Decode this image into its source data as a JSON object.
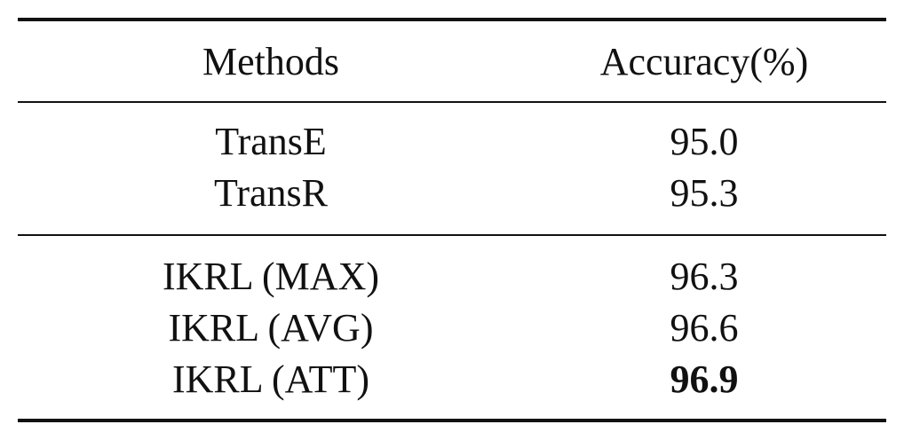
{
  "table": {
    "header": [
      "Methods",
      "Accuracy(%)"
    ],
    "groups": [
      [
        [
          "TransE",
          "95.0"
        ],
        [
          "TransR",
          "95.3"
        ]
      ],
      [
        [
          "IKRL (MAX)",
          "96.3"
        ],
        [
          "IKRL (AVG)",
          "96.6"
        ],
        [
          "IKRL (ATT)",
          "96.9"
        ]
      ]
    ]
  }
}
